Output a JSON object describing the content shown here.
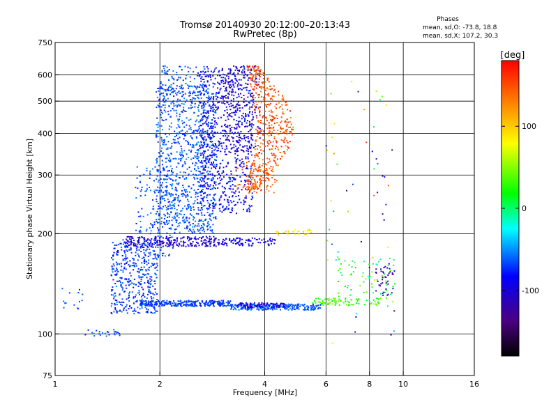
{
  "title_line1": "Tromsø 20140930 20:12:00–20:13:43",
  "title_line2": "RwPretec (8p)",
  "stats": {
    "heading": "Phases",
    "line_o": "mean, sd,O: -73.8, 18.8",
    "line_x": "mean, sd,X: 107.2, 30.3"
  },
  "colorbar": {
    "unit": "[deg]",
    "ticks": [
      {
        "value": 100,
        "label": "100"
      },
      {
        "value": 0,
        "label": "0"
      },
      {
        "value": -100,
        "label": "-100"
      }
    ],
    "range": [
      -180,
      180
    ]
  },
  "chart_data": {
    "type": "scatter",
    "xlabel": "Frequency [MHz]",
    "ylabel": "Stationary phase Virtual Height [km]",
    "xscale": "log2",
    "yscale": "log",
    "xlim": [
      1,
      16
    ],
    "ylim": [
      75,
      750
    ],
    "xticks": [
      {
        "value": 1,
        "label": "1"
      },
      {
        "value": 2,
        "label": "2"
      },
      {
        "value": 4,
        "label": "4"
      },
      {
        "value": 6,
        "label": "6"
      },
      {
        "value": 8,
        "label": "8"
      },
      {
        "value": 10,
        "label": "10"
      },
      {
        "value": 16,
        "label": "16"
      }
    ],
    "yticks": [
      {
        "value": 75,
        "label": "75"
      },
      {
        "value": 100,
        "label": "100"
      },
      {
        "value": 200,
        "label": "200"
      },
      {
        "value": 300,
        "label": "300"
      },
      {
        "value": 400,
        "label": "400"
      },
      {
        "value": 500,
        "label": "500"
      },
      {
        "value": 600,
        "label": "600"
      },
      {
        "value": 750,
        "label": "750"
      }
    ],
    "gridlines_x": [
      2,
      4,
      6,
      8,
      10
    ],
    "gridlines_y": [
      100,
      200,
      300,
      400,
      500,
      600
    ],
    "clusters": [
      {
        "x": [
          1.02,
          1.2
        ],
        "y": [
          115,
          140
        ],
        "phase": [
          -80,
          -55
        ],
        "n": 14
      },
      {
        "x": [
          1.22,
          1.55
        ],
        "y": [
          98,
          103
        ],
        "phase": [
          -80,
          -50
        ],
        "n": 24
      },
      {
        "x": [
          1.45,
          1.98
        ],
        "y": [
          115,
          192
        ],
        "phase": [
          -85,
          -55
        ],
        "n": 420
      },
      {
        "x": [
          1.7,
          2.2
        ],
        "y": [
          170,
          320
        ],
        "phase": [
          -80,
          -50
        ],
        "n": 160
      },
      {
        "x": [
          1.95,
          2.9
        ],
        "y": [
          200,
          560
        ],
        "phase": [
          -80,
          -50
        ],
        "n": 950
      },
      {
        "x": [
          2.0,
          2.7
        ],
        "y": [
          520,
          640
        ],
        "phase": [
          -80,
          -55
        ],
        "n": 90
      },
      {
        "x": [
          2.6,
          3.7
        ],
        "y": [
          230,
          640
        ],
        "phase": [
          -105,
          -70
        ],
        "n": 700
      },
      {
        "x": [
          3.0,
          3.9
        ],
        "y": [
          350,
          640
        ],
        "phase": [
          -125,
          -95
        ],
        "n": 220
      },
      {
        "x": [
          1.6,
          2.9
        ],
        "y": [
          183,
          196
        ],
        "phase": [
          -115,
          -90
        ],
        "n": 230
      },
      {
        "x": [
          2.9,
          4.3
        ],
        "y": [
          184,
          194
        ],
        "phase": [
          -105,
          -80
        ],
        "n": 90
      },
      {
        "x": [
          1.75,
          3.2
        ],
        "y": [
          121,
          126
        ],
        "phase": [
          -80,
          -60
        ],
        "n": 280
      },
      {
        "x": [
          3.2,
          5.8
        ],
        "y": [
          118,
          123
        ],
        "phase": [
          -75,
          -55
        ],
        "n": 280
      },
      {
        "x": [
          3.3,
          4.6
        ],
        "y": [
          120,
          124
        ],
        "phase": [
          -115,
          -90
        ],
        "n": 80
      },
      {
        "x": [
          5.5,
          8.6
        ],
        "y": [
          122,
          128
        ],
        "phase": [
          5,
          55
        ],
        "n": 90
      },
      {
        "x": [
          6.5,
          9.5
        ],
        "y": [
          128,
          170
        ],
        "phase": [
          -20,
          50
        ],
        "n": 60
      },
      {
        "x": [
          8.2,
          9.5
        ],
        "y": [
          130,
          165
        ],
        "phase": [
          -130,
          -100
        ],
        "n": 40
      },
      {
        "x": [
          4.3,
          5.5
        ],
        "y": [
          198,
          206
        ],
        "phase": [
          80,
          110
        ],
        "n": 30
      },
      {
        "x": [
          3.3,
          4.4
        ],
        "y": [
          265,
          330
        ],
        "phase": [
          130,
          160
        ],
        "n": 70
      },
      {
        "x": [
          5.9,
          9.5
        ],
        "y": [
          90,
          650
        ],
        "phase": [
          -150,
          150
        ],
        "n": 60
      }
    ],
    "arc": {
      "x_min": 3.8,
      "x_max": 4.85,
      "y_min": 270,
      "y_max": 640,
      "phase": [
        125,
        170
      ],
      "n": 480
    }
  }
}
